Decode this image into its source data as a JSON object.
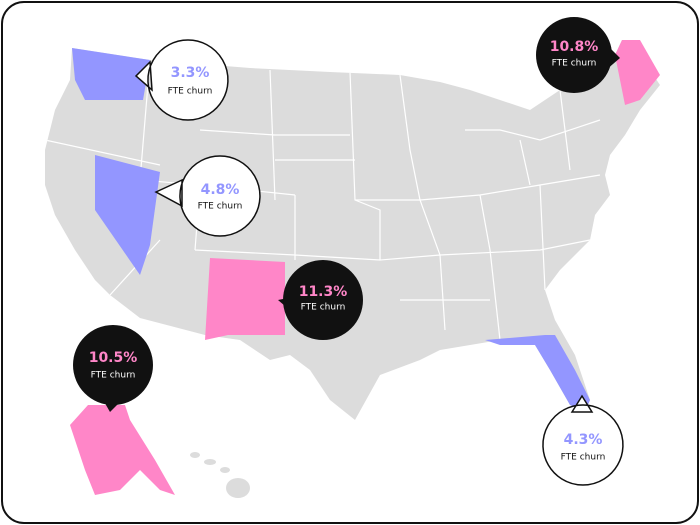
{
  "callouts": [
    {
      "value": "3.3%",
      "label": "FTE churn"
    },
    {
      "value": "4.8%",
      "label": "FTE churn"
    },
    {
      "value": "11.3%",
      "label": "FTE churn"
    },
    {
      "value": "10.5%",
      "label": "FTE churn"
    },
    {
      "value": "10.8%",
      "label": "FTE churn"
    },
    {
      "value": "4.3%",
      "label": "FTE churn"
    }
  ]
}
